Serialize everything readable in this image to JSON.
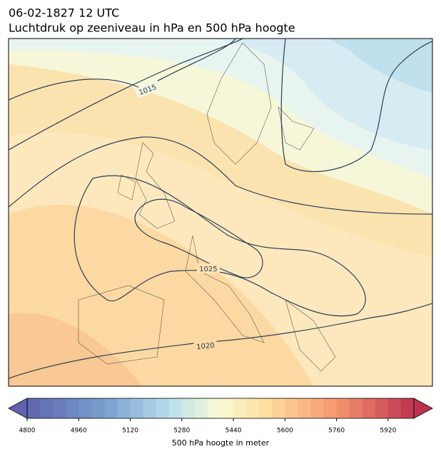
{
  "title": "06-02-1827 12 UTC",
  "subtitle": "Luchtdruk op zeeniveau in hPa en 500 hPa hoogte",
  "map": {
    "isobar_labels": [
      "1015",
      "1025",
      "1020"
    ]
  },
  "colorbar": {
    "label": "500 hPa hoogte in meter",
    "lim": [
      4800,
      6000
    ],
    "step": 40,
    "ticks": [
      4800,
      4960,
      5120,
      5280,
      5440,
      5600,
      5760,
      5920
    ]
  }
}
